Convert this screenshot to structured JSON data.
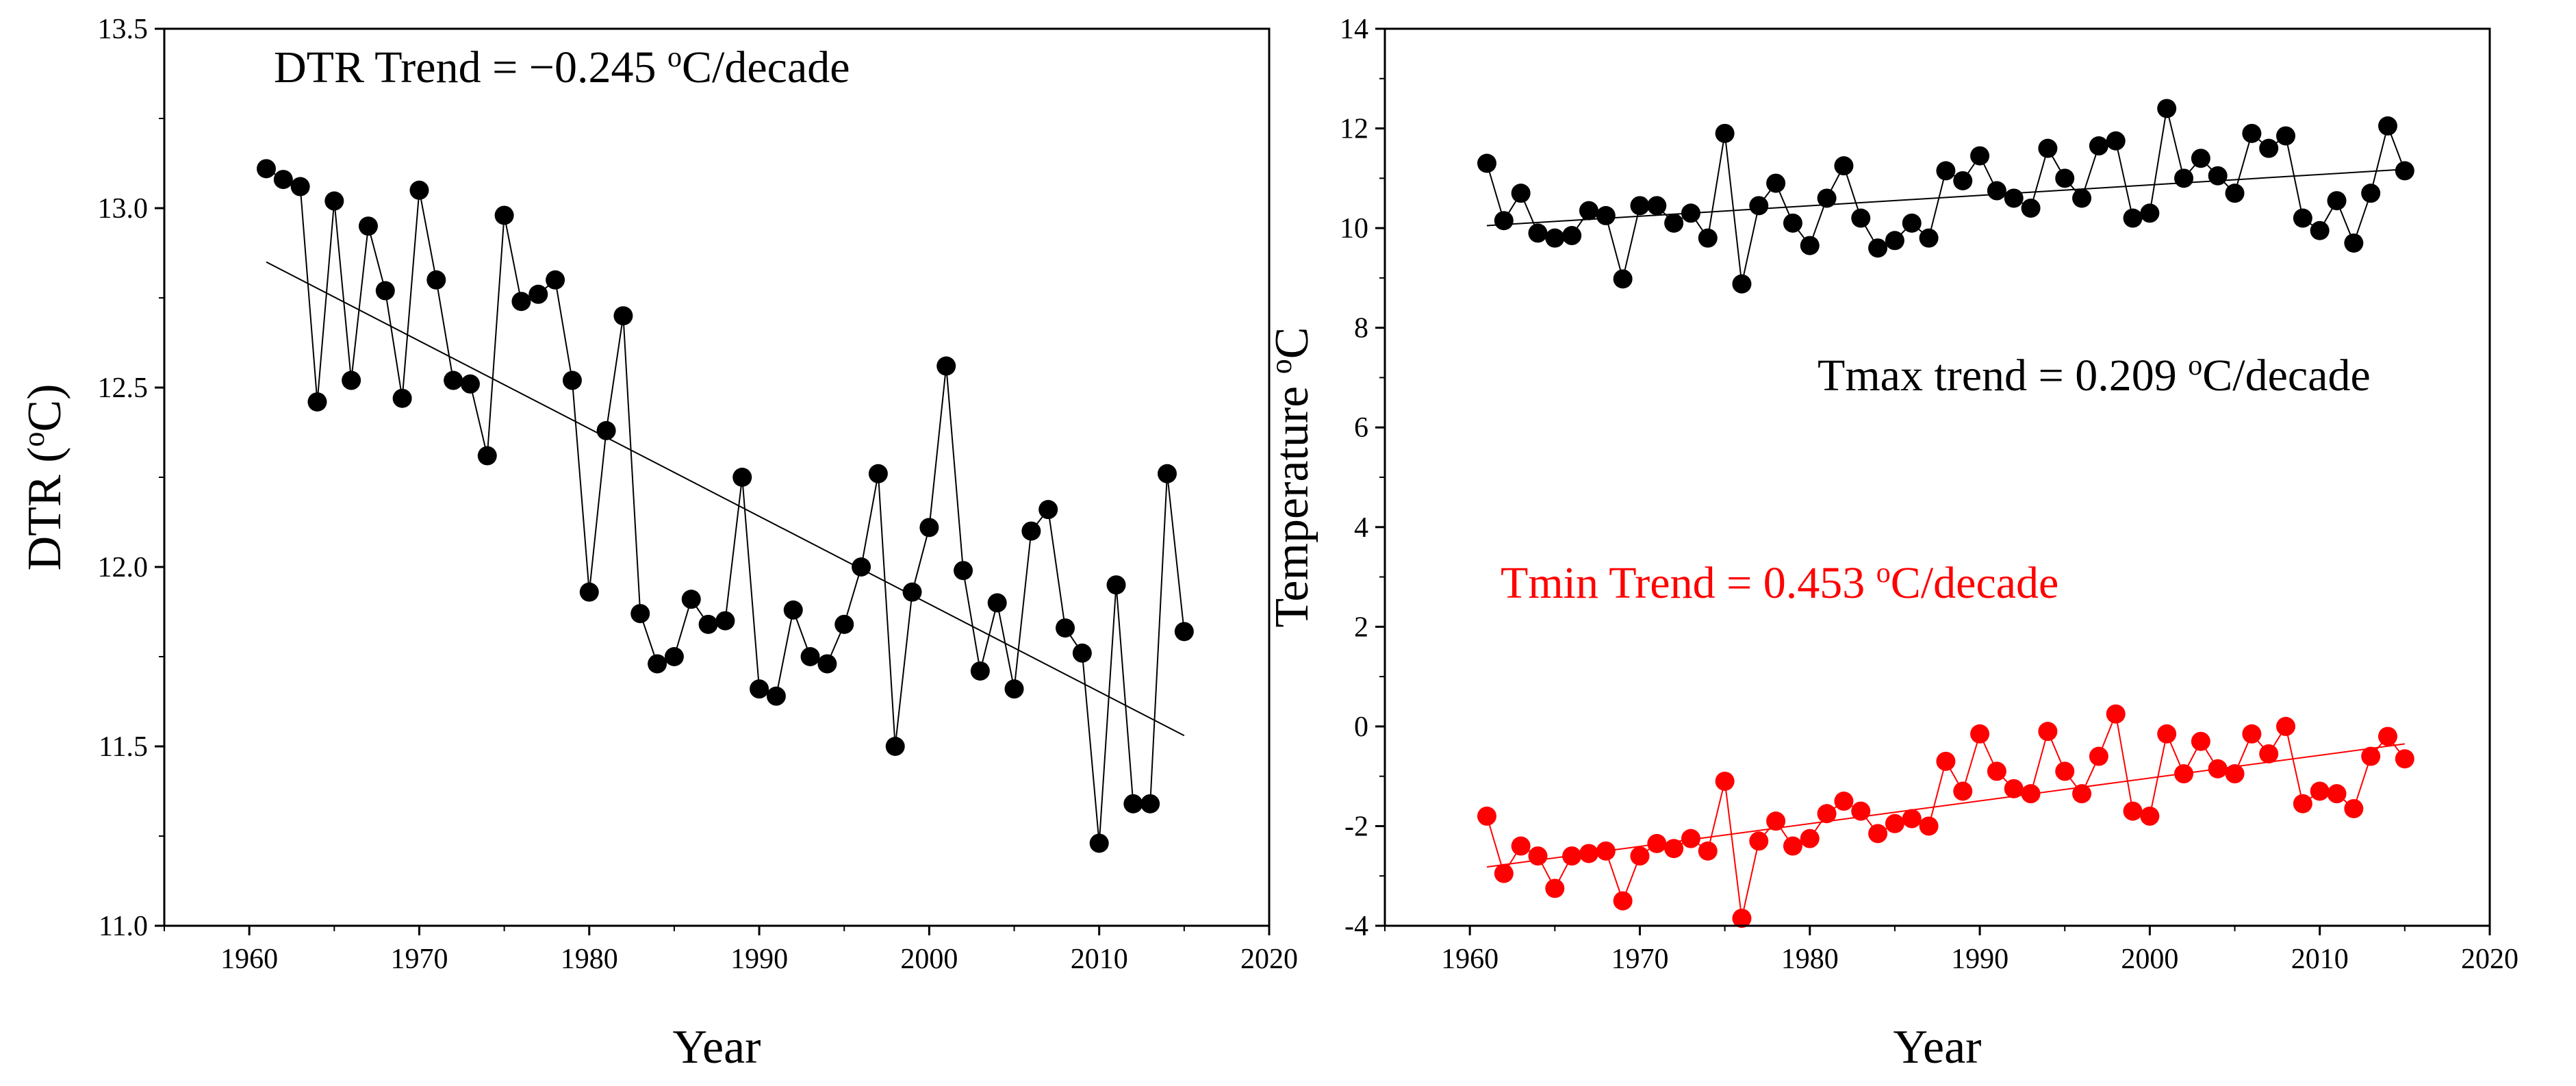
{
  "chart_data": [
    {
      "type": "line",
      "title": "",
      "xlabel": "Year",
      "ylabel": "DTR (oC)",
      "ylabel_parts": [
        "DTR (",
        "o",
        "C)"
      ],
      "xlim": [
        1955,
        2020
      ],
      "ylim": [
        11.0,
        13.5
      ],
      "xticks": [
        1960,
        1970,
        1980,
        1990,
        2000,
        2010,
        2020
      ],
      "xtick_labels": [
        "1960",
        "1970",
        "1980",
        "1990",
        "2000",
        "2010",
        "2020"
      ],
      "yticks": [
        11.0,
        11.5,
        12.0,
        12.5,
        13.0,
        13.5
      ],
      "ytick_labels": [
        "11.0",
        "11.5",
        "12.0",
        "12.5",
        "13.0",
        "13.5"
      ],
      "annotation": {
        "text": "DTR   Trend = −0.245 oC/decade",
        "parts": [
          "DTR   Trend = −0.245 ",
          "o",
          "C/decade"
        ],
        "color": "#000000"
      },
      "series": [
        {
          "name": "DTR",
          "color": "#000000",
          "x": [
            1961,
            1962,
            1963,
            1964,
            1965,
            1966,
            1967,
            1968,
            1969,
            1970,
            1971,
            1972,
            1973,
            1974,
            1975,
            1976,
            1977,
            1978,
            1979,
            1980,
            1981,
            1982,
            1983,
            1984,
            1985,
            1986,
            1987,
            1988,
            1989,
            1990,
            1991,
            1992,
            1993,
            1994,
            1995,
            1996,
            1997,
            1998,
            1999,
            2000,
            2001,
            2002,
            2003,
            2004,
            2005,
            2006,
            2007,
            2008,
            2009,
            2010,
            2011,
            2012,
            2013,
            2014,
            2015
          ],
          "y": [
            13.11,
            13.08,
            13.06,
            12.46,
            13.02,
            12.52,
            12.95,
            12.77,
            12.47,
            13.05,
            12.8,
            12.52,
            12.51,
            12.31,
            12.98,
            12.74,
            12.76,
            12.8,
            12.52,
            11.93,
            12.38,
            12.7,
            11.87,
            11.73,
            11.75,
            11.91,
            11.84,
            11.85,
            12.25,
            11.66,
            11.64,
            11.88,
            11.75,
            11.73,
            11.84,
            12.0,
            12.26,
            11.5,
            11.93,
            12.11,
            12.56,
            11.99,
            11.71,
            11.9,
            11.66,
            12.1,
            12.16,
            11.83,
            11.76,
            11.23,
            11.95,
            11.34,
            11.34,
            12.26,
            11.82
          ],
          "trend": {
            "x": [
              1961,
              2015
            ],
            "y": [
              12.85,
              11.53
            ]
          }
        }
      ]
    },
    {
      "type": "line",
      "title": "",
      "xlabel": "Year",
      "ylabel": "Temperature oC",
      "ylabel_parts": [
        "Temperature ",
        "o",
        "C"
      ],
      "xlim": [
        1955,
        2020
      ],
      "ylim": [
        -4,
        14
      ],
      "xticks": [
        1960,
        1970,
        1980,
        1990,
        2000,
        2010,
        2020
      ],
      "xtick_labels": [
        "1960",
        "1970",
        "1980",
        "1990",
        "2000",
        "2010",
        "2020"
      ],
      "yticks": [
        -4,
        -2,
        0,
        2,
        4,
        6,
        8,
        10,
        12,
        14
      ],
      "ytick_labels": [
        "-4",
        "-2",
        "0",
        "2",
        "4",
        "6",
        "8",
        "10",
        "12",
        "14"
      ],
      "annotations": [
        {
          "text": "Tmax   trend = 0.209 oC/decade",
          "parts": [
            "Tmax   trend = 0.209 ",
            "o",
            "C/decade"
          ],
          "color": "#000000"
        },
        {
          "text": "Tmin   Trend = 0.453 oC/decade",
          "parts": [
            "Tmin   Trend = 0.453 ",
            "o",
            "C/decade"
          ],
          "color": "#ff0000"
        }
      ],
      "series": [
        {
          "name": "Tmax",
          "color": "#000000",
          "x": [
            1961,
            1962,
            1963,
            1964,
            1965,
            1966,
            1967,
            1968,
            1969,
            1970,
            1971,
            1972,
            1973,
            1974,
            1975,
            1976,
            1977,
            1978,
            1979,
            1980,
            1981,
            1982,
            1983,
            1984,
            1985,
            1986,
            1987,
            1988,
            1989,
            1990,
            1991,
            1992,
            1993,
            1994,
            1995,
            1996,
            1997,
            1998,
            1999,
            2000,
            2001,
            2002,
            2003,
            2004,
            2005,
            2006,
            2007,
            2008,
            2009,
            2010,
            2011,
            2012,
            2013,
            2014,
            2015
          ],
          "y": [
            11.3,
            10.15,
            10.7,
            9.9,
            9.8,
            9.85,
            10.35,
            10.25,
            8.98,
            10.45,
            10.45,
            10.1,
            10.3,
            9.8,
            11.9,
            8.88,
            10.45,
            10.9,
            10.1,
            9.65,
            10.6,
            11.25,
            10.2,
            9.6,
            9.75,
            10.1,
            9.8,
            11.15,
            10.95,
            11.45,
            10.75,
            10.6,
            10.4,
            11.6,
            11.0,
            10.6,
            11.65,
            11.75,
            10.2,
            10.3,
            12.4,
            11.0,
            11.4,
            11.05,
            10.7,
            11.9,
            11.6,
            11.85,
            10.2,
            9.95,
            10.55,
            9.7,
            10.7,
            12.05,
            11.15
          ],
          "trend": {
            "x": [
              1961,
              2015
            ],
            "y": [
              10.05,
              11.18
            ]
          }
        },
        {
          "name": "Tmin",
          "color": "#ff0000",
          "x": [
            1961,
            1962,
            1963,
            1964,
            1965,
            1966,
            1967,
            1968,
            1969,
            1970,
            1971,
            1972,
            1973,
            1974,
            1975,
            1976,
            1977,
            1978,
            1979,
            1980,
            1981,
            1982,
            1983,
            1984,
            1985,
            1986,
            1987,
            1988,
            1989,
            1990,
            1991,
            1992,
            1993,
            1994,
            1995,
            1996,
            1997,
            1998,
            1999,
            2000,
            2001,
            2002,
            2003,
            2004,
            2005,
            2006,
            2007,
            2008,
            2009,
            2010,
            2011,
            2012,
            2013,
            2014,
            2015
          ],
          "y": [
            -1.8,
            -2.95,
            -2.4,
            -2.6,
            -3.25,
            -2.6,
            -2.55,
            -2.5,
            -3.5,
            -2.6,
            -2.35,
            -2.45,
            -2.25,
            -2.5,
            -1.1,
            -3.85,
            -2.3,
            -1.9,
            -2.4,
            -2.25,
            -1.75,
            -1.5,
            -1.7,
            -2.15,
            -1.95,
            -1.85,
            -2.0,
            -0.7,
            -1.3,
            -0.15,
            -0.9,
            -1.25,
            -1.35,
            -0.1,
            -0.9,
            -1.35,
            -0.6,
            0.25,
            -1.7,
            -1.8,
            -0.15,
            -0.95,
            -0.3,
            -0.85,
            -0.95,
            -0.15,
            -0.55,
            0.0,
            -1.55,
            -1.3,
            -1.35,
            -1.65,
            -0.6,
            -0.2,
            -0.65
          ],
          "trend": {
            "x": [
              1961,
              2015
            ],
            "y": [
              -2.82,
              -0.35
            ]
          }
        }
      ]
    }
  ]
}
